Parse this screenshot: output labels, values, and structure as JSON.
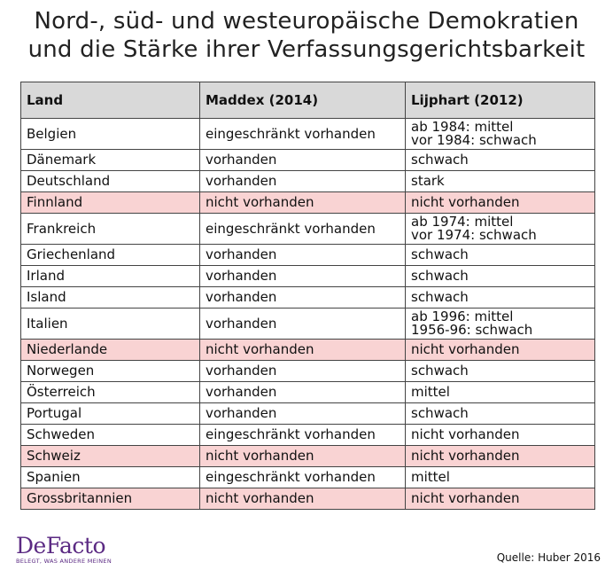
{
  "title_line1": "Nord-, süd- und westeuropäische Demokratien",
  "title_line2": "und die Stärke ihrer Verfassungsgerichtsbarkeit",
  "table": {
    "headers": [
      "Land",
      "Maddex (2014)",
      "Lijphart (2012)"
    ],
    "highlight_color": "#f9d3d3",
    "rows": [
      {
        "land": "Belgien",
        "maddex": "eingeschränkt vorhanden",
        "lijphart": "ab 1984: mittel\nvor 1984: schwach",
        "highlight": false
      },
      {
        "land": "Dänemark",
        "maddex": "vorhanden",
        "lijphart": "schwach",
        "highlight": false
      },
      {
        "land": "Deutschland",
        "maddex": "vorhanden",
        "lijphart": "stark",
        "highlight": false
      },
      {
        "land": "Finnland",
        "maddex": "nicht vorhanden",
        "lijphart": "nicht vorhanden",
        "highlight": true
      },
      {
        "land": "Frankreich",
        "maddex": "eingeschränkt vorhanden",
        "lijphart": "ab 1974: mittel\nvor 1974: schwach",
        "highlight": false
      },
      {
        "land": "Griechenland",
        "maddex": "vorhanden",
        "lijphart": "schwach",
        "highlight": false
      },
      {
        "land": "Irland",
        "maddex": "vorhanden",
        "lijphart": "schwach",
        "highlight": false
      },
      {
        "land": "Island",
        "maddex": "vorhanden",
        "lijphart": "schwach",
        "highlight": false
      },
      {
        "land": "Italien",
        "maddex": "vorhanden",
        "lijphart": "ab 1996: mittel\n1956-96: schwach",
        "highlight": false
      },
      {
        "land": "Niederlande",
        "maddex": "nicht vorhanden",
        "lijphart": "nicht vorhanden",
        "highlight": true
      },
      {
        "land": "Norwegen",
        "maddex": "vorhanden",
        "lijphart": "schwach",
        "highlight": false
      },
      {
        "land": "Österreich",
        "maddex": "vorhanden",
        "lijphart": "mittel",
        "highlight": false
      },
      {
        "land": "Portugal",
        "maddex": "vorhanden",
        "lijphart": "schwach",
        "highlight": false
      },
      {
        "land": "Schweden",
        "maddex": "eingeschränkt vorhanden",
        "lijphart": "nicht vorhanden",
        "highlight": false
      },
      {
        "land": "Schweiz",
        "maddex": "nicht vorhanden",
        "lijphart": "nicht vorhanden",
        "highlight": true
      },
      {
        "land": "Spanien",
        "maddex": "eingeschränkt vorhanden",
        "lijphart": "mittel",
        "highlight": false
      },
      {
        "land": "Grossbritannien",
        "maddex": "nicht vorhanden",
        "lijphart": "nicht vorhanden",
        "highlight": true
      }
    ]
  },
  "logo": {
    "name": "DeFacto",
    "tagline": "BELEGT, WAS ANDERE MEINEN",
    "color": "#5b2a83"
  },
  "source": "Quelle: Huber 2016"
}
